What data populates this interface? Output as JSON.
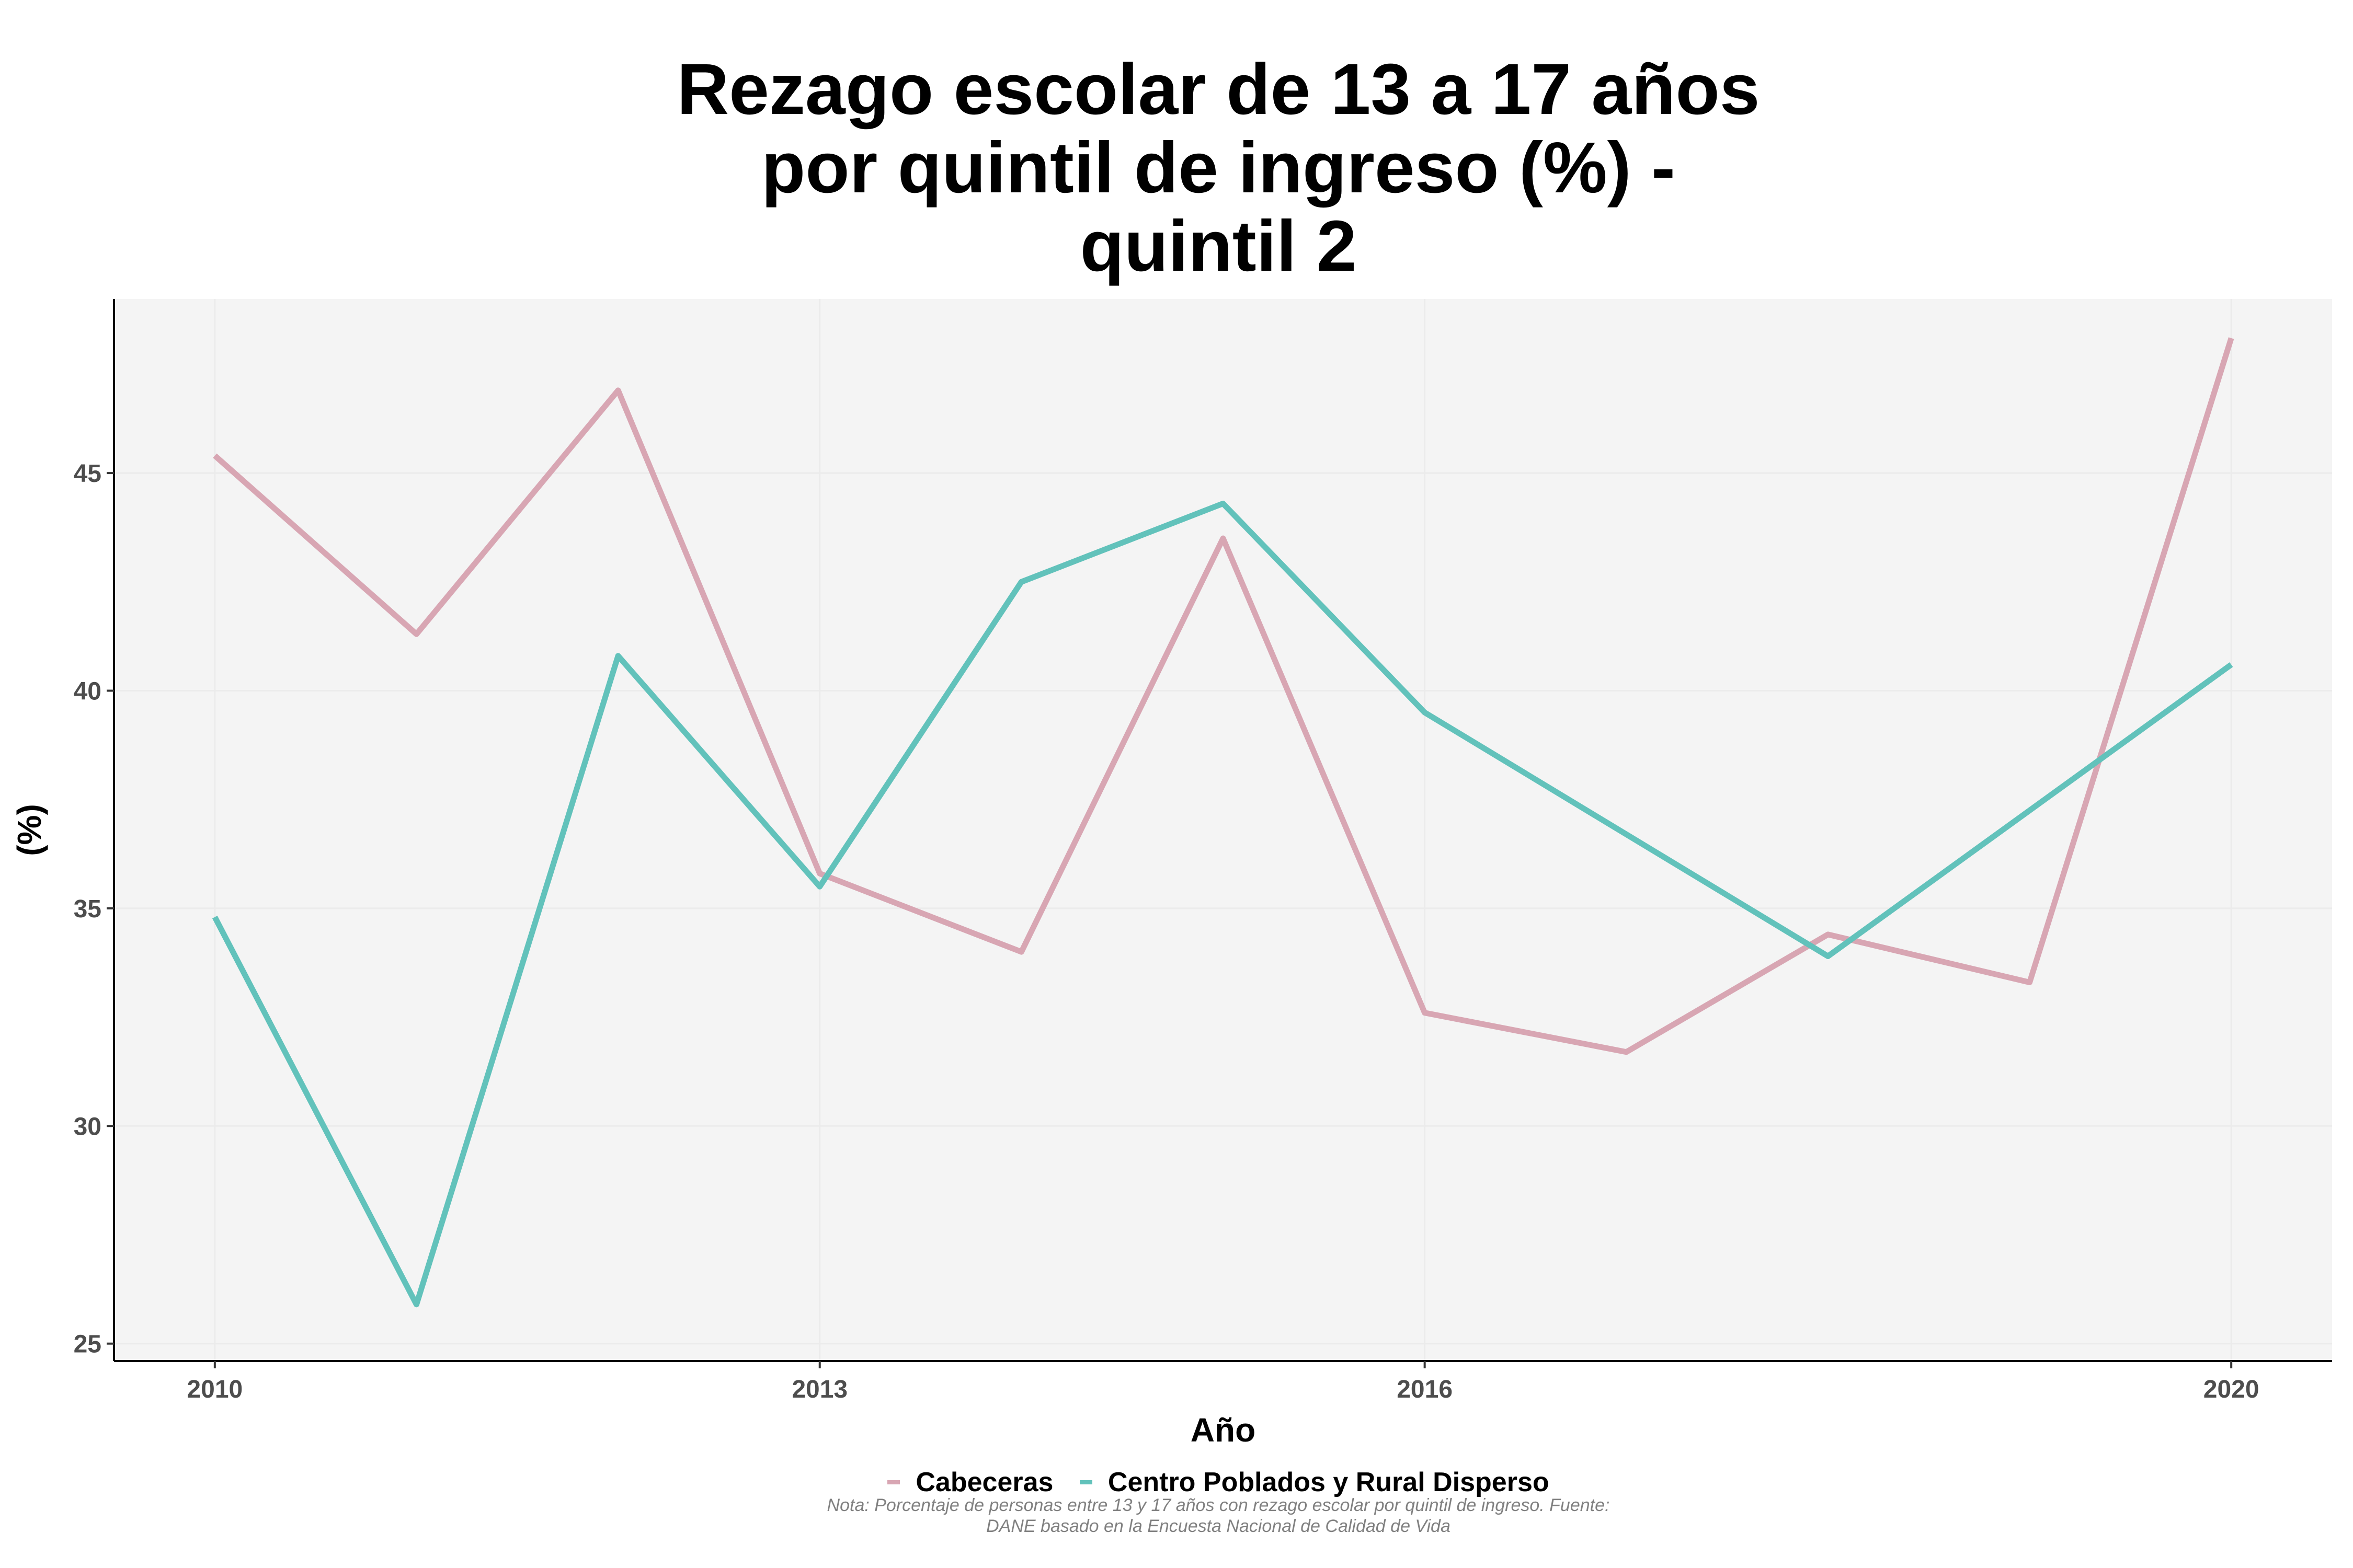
{
  "chart_data": {
    "type": "line",
    "title_lines": [
      "Rezago escolar de 13 a 17 años",
      "por quintil de ingreso (%) -",
      "quintil 2"
    ],
    "xlabel": "Año",
    "ylabel": "(%)",
    "x": [
      2010,
      2011,
      2012,
      2013,
      2014,
      2015,
      2016,
      2017,
      2018,
      2019,
      2020
    ],
    "x_ticks": [
      2010,
      2013,
      2016,
      2020
    ],
    "xlim": [
      2009.5,
      2020.5
    ],
    "y_ticks": [
      25,
      30,
      35,
      40,
      45
    ],
    "ylim": [
      24.6,
      49.0
    ],
    "grid": true,
    "legend_position": "bottom",
    "series": [
      {
        "name": "Cabeceras",
        "color": "#d8a6b3",
        "values": [
          45.4,
          41.3,
          46.9,
          35.8,
          34.0,
          43.5,
          32.6,
          31.7,
          34.4,
          33.3,
          48.1
        ]
      },
      {
        "name": "Centro Poblados y Rural Disperso",
        "color": "#62c2bb",
        "values": [
          34.8,
          25.9,
          40.8,
          35.5,
          42.5,
          44.3,
          39.5,
          null,
          33.9,
          null,
          40.6
        ]
      }
    ],
    "note_lines": [
      "Nota: Porcentaje de personas entre 13 y 17 años con rezago escolar por quintil de ingreso. Fuente:",
      "DANE basado en la Encuesta Nacional de Calidad de Vida"
    ]
  }
}
